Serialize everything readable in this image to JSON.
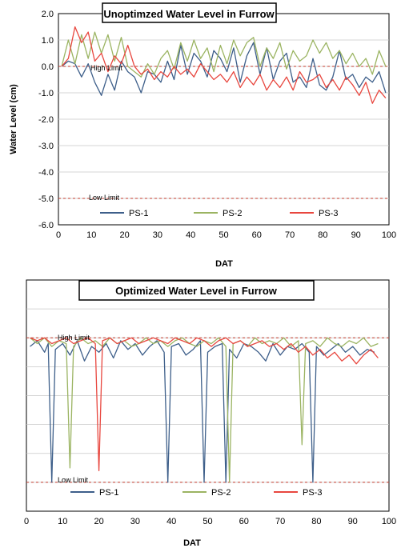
{
  "chart_data": [
    {
      "type": "line",
      "title": "Unoptimzed Water Level in Furrow",
      "xlabel": "DAT",
      "ylabel": "Water Level (cm)",
      "xlim": [
        0,
        100
      ],
      "ylim": [
        -6,
        2
      ],
      "x_ticks": [
        "0",
        "10",
        "20",
        "30",
        "40",
        "50",
        "60",
        "70",
        "80",
        "90",
        "100"
      ],
      "y_ticks": [
        "2.0",
        "1.0",
        "0.0",
        "-1.0",
        "-2.0",
        "-3.0",
        "-4.0",
        "-5.0",
        "-6.0"
      ],
      "grid": "horizontal",
      "legend": "bottom",
      "high_limit": {
        "label": "High Limit",
        "y": 0
      },
      "low_limit": {
        "label": "Low Limit",
        "y": -5
      },
      "series": [
        {
          "name": "PS-1",
          "color": "#3e5f8a",
          "x": [
            1,
            3,
            5,
            7,
            9,
            11,
            13,
            15,
            17,
            19,
            21,
            23,
            25,
            27,
            29,
            31,
            33,
            35,
            37,
            39,
            41,
            43,
            45,
            47,
            49,
            51,
            53,
            55,
            57,
            59,
            61,
            63,
            65,
            67,
            69,
            71,
            73,
            75,
            77,
            79,
            81,
            83,
            85,
            87,
            89,
            91,
            93,
            95,
            97,
            99
          ],
          "y": [
            0,
            0.2,
            0.1,
            -0.4,
            0.1,
            -0.6,
            -1.1,
            -0.3,
            -0.9,
            0.2,
            -0.2,
            -0.4,
            -1.0,
            -0.2,
            -0.3,
            -0.6,
            0.2,
            -0.5,
            0.8,
            -0.3,
            0.5,
            0.2,
            -0.4,
            0.6,
            0.3,
            -0.2,
            0.7,
            -0.6,
            0.4,
            0.9,
            -0.3,
            0.7,
            -0.5,
            0.2,
            0.5,
            -0.6,
            -0.4,
            -0.8,
            0.3,
            -0.7,
            -0.9,
            -0.4,
            0.6,
            -0.5,
            -0.3,
            -0.8,
            -0.4,
            -0.6,
            -0.2,
            -1.0
          ]
        },
        {
          "name": "PS-2",
          "color": "#9bb462",
          "x": [
            1,
            3,
            5,
            7,
            9,
            11,
            13,
            15,
            17,
            19,
            21,
            23,
            25,
            27,
            29,
            31,
            33,
            35,
            37,
            39,
            41,
            43,
            45,
            47,
            49,
            51,
            53,
            55,
            57,
            59,
            61,
            63,
            65,
            67,
            69,
            71,
            73,
            75,
            77,
            79,
            81,
            83,
            85,
            87,
            89,
            91,
            93,
            95,
            97,
            99
          ],
          "y": [
            0,
            1.0,
            0.1,
            1.2,
            0.3,
            1.3,
            0.5,
            1.2,
            0.2,
            1.1,
            0.0,
            -0.2,
            -0.4,
            0.1,
            -0.3,
            0.3,
            0.6,
            -0.1,
            0.9,
            0.2,
            1.0,
            0.3,
            0.7,
            -0.2,
            0.8,
            0.1,
            1.0,
            0.4,
            0.9,
            1.1,
            0.0,
            0.7,
            0.3,
            0.9,
            -0.1,
            0.6,
            0.2,
            0.4,
            1.0,
            0.5,
            0.9,
            0.3,
            0.6,
            0.1,
            0.5,
            0.0,
            0.3,
            -0.3,
            0.6,
            0.0
          ]
        },
        {
          "name": "PS-3",
          "color": "#e8473f",
          "x": [
            1,
            3,
            5,
            7,
            9,
            11,
            13,
            15,
            17,
            19,
            21,
            23,
            25,
            27,
            29,
            31,
            33,
            35,
            37,
            39,
            41,
            43,
            45,
            47,
            49,
            51,
            53,
            55,
            57,
            59,
            61,
            63,
            65,
            67,
            69,
            71,
            73,
            75,
            77,
            79,
            81,
            83,
            85,
            87,
            89,
            91,
            93,
            95,
            97,
            99
          ],
          "y": [
            0,
            0.3,
            1.5,
            0.9,
            1.3,
            0.2,
            0.5,
            -0.2,
            0.4,
            0.1,
            0.8,
            0.0,
            -0.3,
            -0.1,
            -0.5,
            -0.2,
            -0.4,
            0.0,
            -0.3,
            -0.1,
            -0.4,
            0.1,
            -0.2,
            -0.5,
            -0.3,
            -0.6,
            -0.2,
            -0.8,
            -0.4,
            -0.7,
            -0.3,
            -0.9,
            -0.5,
            -0.8,
            -0.4,
            -0.9,
            -0.2,
            -0.6,
            -0.5,
            -0.3,
            -0.8,
            -0.5,
            -0.9,
            -0.4,
            -0.7,
            -1.1,
            -0.6,
            -1.4,
            -0.9,
            -1.2
          ]
        }
      ]
    },
    {
      "type": "line",
      "title": "Optimized Water Level in Furrow",
      "xlabel": "DAT",
      "ylabel": "",
      "xlim": [
        0,
        100
      ],
      "ylim": [
        -6,
        2
      ],
      "x_ticks": [
        "0",
        "10",
        "20",
        "30",
        "40",
        "50",
        "60",
        "70",
        "80",
        "90",
        "100"
      ],
      "y_ticks": [],
      "grid": "horizontal",
      "legend": "bottom",
      "high_limit": {
        "label": "High Limit",
        "y": 0
      },
      "low_limit": {
        "label": "Low Limit",
        "y": -5
      },
      "series": [
        {
          "name": "PS-1",
          "color": "#3e5f8a",
          "x": [
            1,
            3,
            5,
            6,
            7,
            8,
            10,
            12,
            14,
            16,
            18,
            20,
            22,
            24,
            26,
            28,
            30,
            32,
            34,
            36,
            38,
            39,
            40,
            42,
            44,
            46,
            48,
            49,
            50,
            52,
            54,
            55,
            56,
            58,
            60,
            62,
            64,
            66,
            68,
            70,
            72,
            74,
            76,
            78,
            79,
            80,
            82,
            84,
            86,
            88,
            90,
            92,
            94,
            96
          ],
          "y": [
            -0.3,
            -0.1,
            -0.5,
            -0.2,
            -5.0,
            -0.4,
            -0.2,
            -0.6,
            -0.1,
            -0.8,
            -0.3,
            -0.5,
            -0.2,
            -0.7,
            -0.1,
            -0.4,
            -0.2,
            -0.6,
            -0.3,
            -0.1,
            -0.5,
            -5.0,
            -0.3,
            -0.2,
            -0.6,
            -0.4,
            -0.1,
            -5.0,
            -0.5,
            -0.3,
            -0.2,
            -5.0,
            -0.4,
            -0.7,
            -0.2,
            -0.3,
            -0.5,
            -0.8,
            -0.2,
            -0.6,
            -0.3,
            -0.4,
            -0.2,
            -0.5,
            -5.0,
            -0.3,
            -0.6,
            -0.4,
            -0.2,
            -0.5,
            -0.3,
            -0.6,
            -0.4,
            -0.5
          ]
        },
        {
          "name": "PS-2",
          "color": "#9bb462",
          "x": [
            1,
            3,
            5,
            7,
            9,
            11,
            12,
            13,
            15,
            17,
            19,
            21,
            23,
            25,
            27,
            29,
            31,
            33,
            35,
            37,
            39,
            41,
            43,
            45,
            47,
            49,
            51,
            53,
            55,
            56,
            57,
            59,
            61,
            63,
            65,
            67,
            69,
            71,
            73,
            75,
            76,
            77,
            79,
            81,
            83,
            85,
            87,
            89,
            91,
            93,
            95,
            97
          ],
          "y": [
            0,
            -0.2,
            0,
            -0.3,
            -0.1,
            -0.2,
            -4.5,
            -0.3,
            0,
            -0.2,
            -0.1,
            -0.3,
            0,
            -0.2,
            -0.1,
            -0.3,
            -0.2,
            0,
            -0.2,
            -0.1,
            -0.3,
            -0.1,
            0,
            -0.2,
            -0.3,
            -0.1,
            -0.2,
            0,
            -0.3,
            -5.0,
            -0.2,
            -0.1,
            -0.3,
            0,
            -0.2,
            -0.1,
            -0.2,
            0,
            -0.3,
            -0.1,
            -3.7,
            -0.2,
            -0.1,
            -0.3,
            0,
            -0.2,
            -0.3,
            -0.1,
            -0.2,
            0,
            -0.3,
            -0.2
          ]
        },
        {
          "name": "PS-3",
          "color": "#e8473f",
          "x": [
            1,
            3,
            5,
            7,
            9,
            11,
            13,
            15,
            17,
            19,
            20,
            21,
            23,
            25,
            27,
            29,
            31,
            33,
            35,
            37,
            39,
            41,
            43,
            45,
            47,
            49,
            51,
            53,
            55,
            57,
            59,
            61,
            63,
            65,
            67,
            69,
            71,
            73,
            75,
            77,
            79,
            81,
            83,
            85,
            87,
            89,
            91,
            93,
            95,
            97
          ],
          "y": [
            0,
            -0.1,
            0,
            -0.2,
            -0.1,
            0,
            -0.2,
            -0.1,
            0,
            -0.2,
            -4.6,
            -0.1,
            0,
            -0.2,
            -0.1,
            0,
            -0.2,
            -0.1,
            0,
            -0.1,
            -0.2,
            0,
            -0.1,
            -0.2,
            0,
            -0.1,
            -0.3,
            -0.1,
            0,
            -0.2,
            -0.1,
            -0.3,
            -0.2,
            -0.1,
            -0.3,
            -0.2,
            -0.4,
            -0.2,
            -0.5,
            -0.3,
            -0.6,
            -0.4,
            -0.7,
            -0.5,
            -0.8,
            -0.6,
            -0.9,
            -0.6,
            -0.4,
            -0.7
          ]
        }
      ]
    }
  ]
}
